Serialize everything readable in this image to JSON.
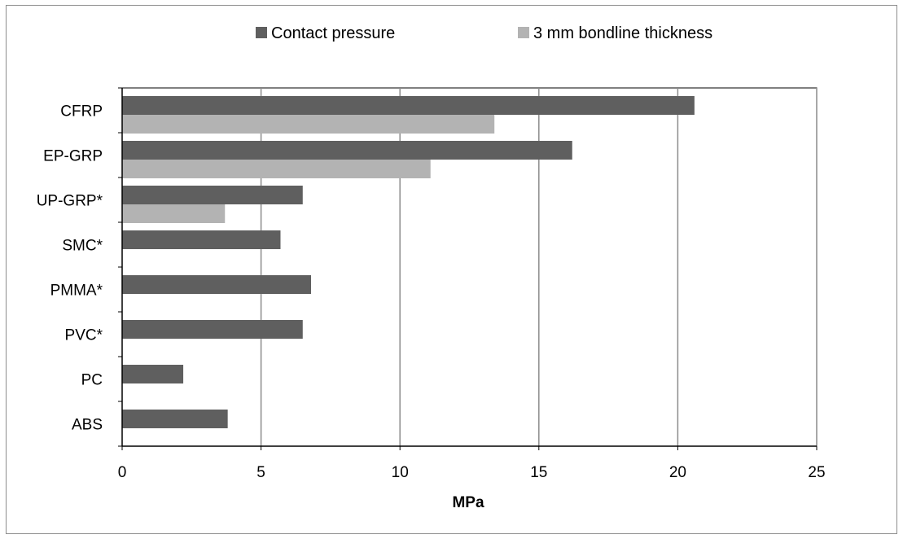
{
  "chart_data": {
    "type": "bar",
    "orientation": "horizontal",
    "categories": [
      "CFRP",
      "EP-GRP",
      "UP-GRP*",
      "SMC*",
      "PMMA*",
      "PVC*",
      "PC",
      "ABS"
    ],
    "series": [
      {
        "name": "Contact pressure",
        "color": "#5f5f5f",
        "values": [
          20.6,
          16.2,
          6.5,
          5.7,
          6.8,
          6.5,
          2.2,
          3.8
        ]
      },
      {
        "name": "3 mm bondline thickness",
        "color": "#b3b3b3",
        "values": [
          13.4,
          11.1,
          3.7,
          null,
          null,
          null,
          null,
          null
        ]
      }
    ],
    "title": "",
    "xlabel": "MPa",
    "ylabel": "",
    "xlim": [
      0,
      25
    ],
    "xticks": [
      0,
      5,
      10,
      15,
      20,
      25
    ],
    "grid": "vertical major gridlines",
    "legend_position": "top"
  }
}
